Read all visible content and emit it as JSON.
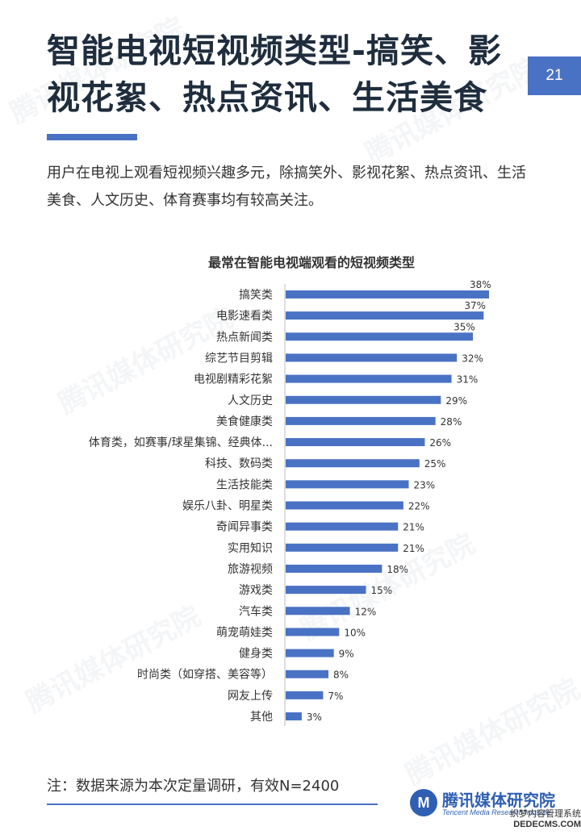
{
  "page": {
    "title": "智能电视短视频类型-搞笑、影视花絮、热点资讯、生活美食",
    "page_number": "21",
    "intro": "用户在电视上观看短视频兴趣多元，除搞笑外、影视花絮、热点资讯、生活美食、人文历史、体育赛事均有较高关注。",
    "accent_color": "#4a72c4"
  },
  "chart_data": {
    "type": "bar",
    "orientation": "horizontal",
    "title": "最常在智能电视端观看的短视频类型",
    "categories": [
      "搞笑类",
      "电影速看类",
      "热点新闻类",
      "综艺节目剪辑",
      "电视剧精彩花絮",
      "人文历史",
      "美食健康类",
      "体育类，如赛事/球星集锦、经典体...",
      "科技、数码类",
      "生活技能类",
      "娱乐八卦、明星类",
      "奇闻异事类",
      "实用知识",
      "旅游视频",
      "游戏类",
      "汽车类",
      "萌宠萌娃类",
      "健身类",
      "时尚类（如穿搭、美容等）",
      "网友上传",
      "其他"
    ],
    "values": [
      38,
      37,
      35,
      32,
      31,
      29,
      28,
      26,
      25,
      23,
      22,
      21,
      21,
      18,
      15,
      12,
      10,
      9,
      8,
      7,
      3
    ],
    "value_suffix": "%",
    "xlim": [
      0,
      40
    ],
    "bar_color": "#4a72c4",
    "grid": false,
    "legend": "none"
  },
  "footer": {
    "note": "注：数据来源为本次定量调研，有效N=2400",
    "logo_cn": "腾讯媒体研究院",
    "logo_en": "Tencent Media Research Institute",
    "logo_mark": "M",
    "site_cn": "织梦内容管理系统",
    "site_en": "DEDECMS.COM"
  }
}
